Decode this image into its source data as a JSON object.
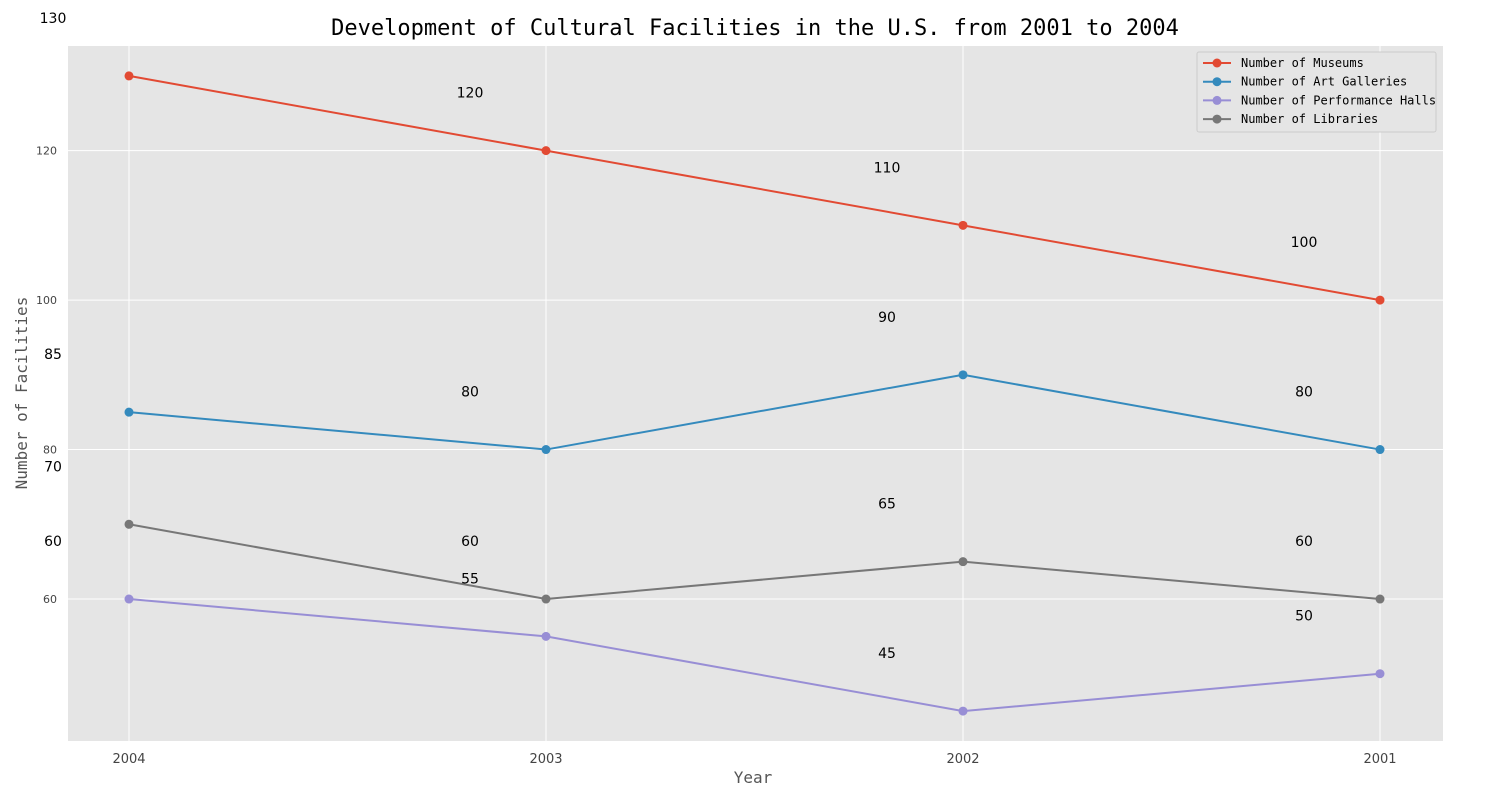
{
  "chart_data": {
    "type": "line",
    "title": "Development of Cultural Facilities in the U.S. from 2001 to 2004",
    "xlabel": "Year",
    "ylabel": "Number of Facilities",
    "categories": [
      "2004",
      "2003",
      "2002",
      "2001"
    ],
    "ylim": [
      41,
      134
    ],
    "yticks": [
      60,
      80,
      100,
      120
    ],
    "grid": true,
    "legend_position": "top-right",
    "series": [
      {
        "name": "Number of Museums",
        "color": "#E24A33",
        "values": [
          130,
          120,
          110,
          100
        ]
      },
      {
        "name": "Number of Art Galleries",
        "color": "#348ABD",
        "values": [
          85,
          80,
          90,
          80
        ]
      },
      {
        "name": "Number of Performance Halls",
        "color": "#988ED5",
        "values": [
          60,
          55,
          45,
          50
        ]
      },
      {
        "name": "Number of Libraries",
        "color": "#777777",
        "values": [
          70,
          60,
          65,
          60
        ]
      }
    ],
    "annotations": [
      {
        "text": "130",
        "x": "2004",
        "y": 130
      },
      {
        "text": "120",
        "x": "2003",
        "y": 120
      },
      {
        "text": "110",
        "x": "2002",
        "y": 110
      },
      {
        "text": "100",
        "x": "2001",
        "y": 100
      },
      {
        "text": "85",
        "x": "2004",
        "y": 85
      },
      {
        "text": "80",
        "x": "2003",
        "y": 80
      },
      {
        "text": "90",
        "x": "2002",
        "y": 90
      },
      {
        "text": "80",
        "x": "2001",
        "y": 80
      },
      {
        "text": "70",
        "x": "2004",
        "y": 70
      },
      {
        "text": "60",
        "x": "2003",
        "y": 60
      },
      {
        "text": "65",
        "x": "2002",
        "y": 65
      },
      {
        "text": "60",
        "x": "2001",
        "y": 60
      },
      {
        "text": "60",
        "x": "2004",
        "y": 60
      },
      {
        "text": "55",
        "x": "2003",
        "y": 55
      },
      {
        "text": "45",
        "x": "2002",
        "y": 45
      },
      {
        "text": "50",
        "x": "2001",
        "y": 50
      }
    ]
  }
}
